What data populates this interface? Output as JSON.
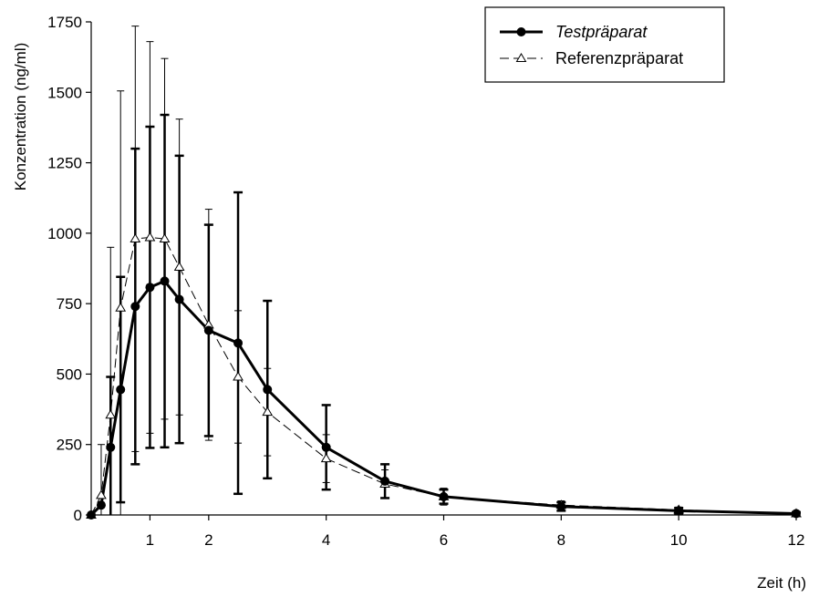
{
  "chart_data": {
    "type": "line",
    "title": "",
    "xlabel": "Zeit (h)",
    "ylabel": "Konzentration (ng/ml)",
    "xlim": [
      0,
      12
    ],
    "ylim": [
      0,
      1750
    ],
    "xticks": [
      1,
      2,
      4,
      6,
      8,
      10,
      12
    ],
    "yticks": [
      0,
      250,
      500,
      750,
      1000,
      1250,
      1500,
      1750
    ],
    "grid": false,
    "legend_position": "top-right",
    "series": [
      {
        "name": "Testpräparat",
        "style": "solid-thick-filled-circle",
        "color": "#000000",
        "x": [
          0,
          0.17,
          0.33,
          0.5,
          0.75,
          1.0,
          1.25,
          1.5,
          2.0,
          2.5,
          3.0,
          4.0,
          5.0,
          6.0,
          8.0,
          10.0,
          12.0
        ],
        "y": [
          0,
          35,
          240,
          445,
          740,
          808,
          830,
          765,
          655,
          610,
          445,
          240,
          120,
          65,
          30,
          15,
          5
        ],
        "err": [
          0,
          0,
          250,
          400,
          560,
          570,
          590,
          510,
          375,
          535,
          315,
          150,
          60,
          25,
          15,
          10,
          5
        ]
      },
      {
        "name": "Referenzpräparat",
        "style": "dashed-thin-open-triangle",
        "color": "#000000",
        "x": [
          0,
          0.17,
          0.33,
          0.5,
          0.75,
          1.0,
          1.25,
          1.5,
          2.0,
          2.5,
          3.0,
          4.0,
          5.0,
          6.0,
          8.0,
          10.0,
          12.0
        ],
        "y": [
          0,
          70,
          355,
          735,
          980,
          985,
          980,
          880,
          675,
          490,
          365,
          200,
          110,
          65,
          35,
          18,
          5
        ],
        "err": [
          0,
          180,
          595,
          770,
          755,
          695,
          640,
          525,
          410,
          235,
          155,
          85,
          50,
          30,
          15,
          10,
          5
        ]
      }
    ]
  }
}
